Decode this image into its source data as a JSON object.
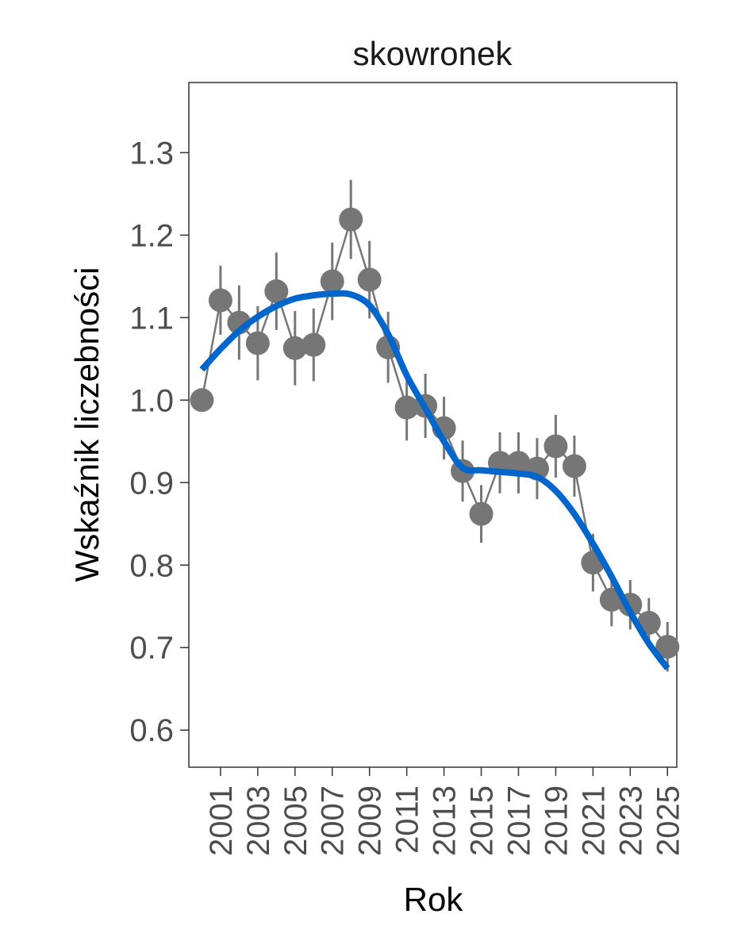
{
  "chart_data": {
    "type": "line",
    "title": "skowronek",
    "xlabel": "Rok",
    "ylabel": "Wskaźnik liczebności",
    "xlim": [
      1999.3,
      2025.5
    ],
    "ylim": [
      0.555,
      1.385
    ],
    "x_ticks": [
      2001,
      2003,
      2005,
      2007,
      2009,
      2011,
      2013,
      2015,
      2017,
      2019,
      2021,
      2023,
      2025
    ],
    "y_ticks": [
      "0.6",
      "0.7",
      "0.8",
      "0.9",
      "1.0",
      "1.1",
      "1.2",
      "1.3"
    ],
    "grid": false,
    "series": [
      {
        "name": "index",
        "color": "#767676",
        "x": [
          2000,
          2001,
          2002,
          2003,
          2004,
          2005,
          2006,
          2007,
          2008,
          2009,
          2010,
          2011,
          2012,
          2013,
          2014,
          2015,
          2016,
          2017,
          2018,
          2019,
          2020,
          2021,
          2022,
          2023,
          2024,
          2025
        ],
        "values": [
          1.0,
          1.121,
          1.094,
          1.069,
          1.132,
          1.063,
          1.067,
          1.144,
          1.219,
          1.146,
          1.064,
          0.991,
          0.993,
          0.966,
          0.914,
          0.862,
          0.924,
          0.924,
          0.917,
          0.944,
          0.92,
          0.803,
          0.758,
          0.752,
          0.73,
          0.701
        ],
        "error": [
          0,
          0.042,
          0.045,
          0.045,
          0.047,
          0.045,
          0.044,
          0.047,
          0.048,
          0.047,
          0.043,
          0.04,
          0.039,
          0.038,
          0.037,
          0.035,
          0.037,
          0.037,
          0.037,
          0.038,
          0.037,
          0.035,
          0.032,
          0.03,
          0.03,
          0.03
        ]
      },
      {
        "name": "trend",
        "color": "#0066CC",
        "x": [
          2000,
          2001,
          2002,
          2003,
          2004,
          2005,
          2006,
          2007,
          2008,
          2009,
          2010,
          2011,
          2012,
          2013,
          2014,
          2015,
          2016,
          2017,
          2018,
          2019,
          2020,
          2021,
          2022,
          2023,
          2024,
          2025
        ],
        "values": [
          1.037,
          1.062,
          1.084,
          1.101,
          1.114,
          1.123,
          1.127,
          1.129,
          1.128,
          1.115,
          1.08,
          1.03,
          0.99,
          0.95,
          0.918,
          0.915,
          0.913,
          0.911,
          0.907,
          0.89,
          0.862,
          0.826,
          0.786,
          0.743,
          0.705,
          0.675
        ]
      }
    ]
  }
}
